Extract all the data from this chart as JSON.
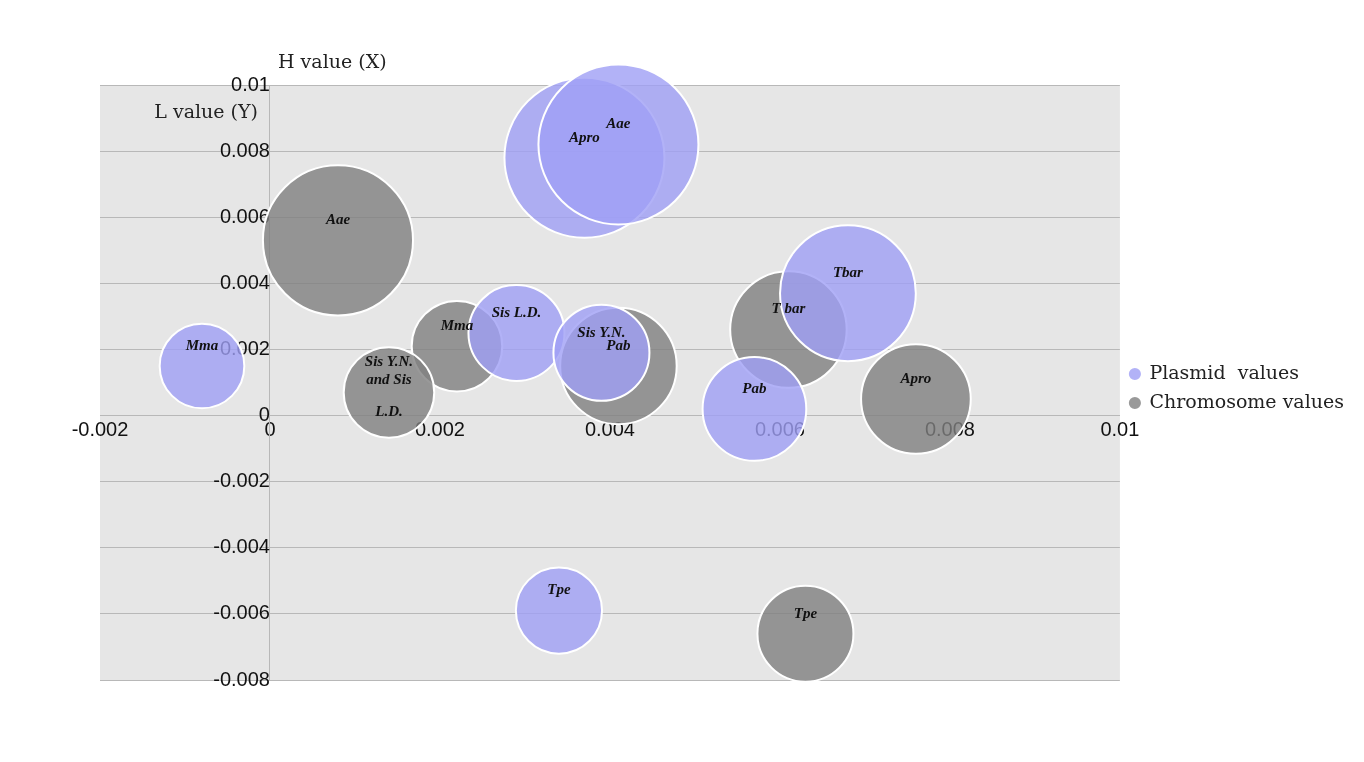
{
  "chart_data": {
    "type": "bubble",
    "xlabel": "H value (X)",
    "ylabel": "L value (Y)",
    "xlim": [
      -0.002,
      0.01
    ],
    "xticks": [
      -0.002,
      0,
      0.002,
      0.004,
      0.006,
      0.008,
      0.01
    ],
    "ylim": [
      -0.008,
      0.01
    ],
    "yticks": [
      -0.008,
      -0.006,
      -0.004,
      -0.002,
      0,
      0.002,
      0.004,
      0.006,
      0.008,
      0.01
    ],
    "grid": "y",
    "legend": "right",
    "series": [
      {
        "name": "Chromosome values",
        "color": "#808080",
        "x": [
          0.0008,
          0.0022,
          0.0014,
          0.0041,
          0.0061,
          0.0076,
          0.0063
        ],
        "values": [
          0.0053,
          0.0021,
          0.0007,
          0.0015,
          0.0026,
          0.0005,
          -0.0066
        ],
        "sizes": [
          0.88,
          0.32,
          0.32,
          0.53,
          0.53,
          0.47,
          0.36
        ]
      },
      {
        "name": "Plasmid  values",
        "color": "#9f9ff5",
        "x": [
          0.0037,
          0.0041,
          -0.0008,
          0.0029,
          0.0039,
          0.0057,
          0.0068,
          0.0034
        ],
        "values": [
          0.0078,
          0.0082,
          0.0015,
          0.0025,
          0.0019,
          0.0002,
          0.0037,
          -0.0059
        ],
        "sizes": [
          1,
          1,
          0.28,
          0.36,
          0.36,
          0.42,
          0.72,
          0.29
        ]
      }
    ],
    "annotations": [
      {
        "text": "Aae",
        "x": 0.0008,
        "y": 0.0053
      },
      {
        "text": "Mma",
        "x": 0.0022,
        "y": 0.0021
      },
      {
        "text": "Sis Y.N. and Sis L.D.",
        "x": 0.0014,
        "y": 0.0007
      },
      {
        "text": "Pab",
        "x": 0.0041,
        "y": 0.0015
      },
      {
        "text": "T bar",
        "x": 0.0061,
        "y": 0.0026
      },
      {
        "text": "Apro",
        "x": 0.0076,
        "y": 0.0005
      },
      {
        "text": "Tpe",
        "x": 0.0063,
        "y": -0.0066
      },
      {
        "text": "Apro",
        "x": 0.0037,
        "y": 0.0078
      },
      {
        "text": "Aae",
        "x": 0.0041,
        "y": 0.0082
      },
      {
        "text": "Mma",
        "x": -0.0008,
        "y": 0.0015
      },
      {
        "text": "Sis L.D.",
        "x": 0.0029,
        "y": 0.0025
      },
      {
        "text": "Sis Y.N.",
        "x": 0.0039,
        "y": 0.0019
      },
      {
        "text": "Pab",
        "x": 0.0057,
        "y": 0.0002
      },
      {
        "text": "Tbar",
        "x": 0.0068,
        "y": 0.0037
      },
      {
        "text": "Tpe",
        "x": 0.0034,
        "y": -0.0059
      }
    ]
  }
}
